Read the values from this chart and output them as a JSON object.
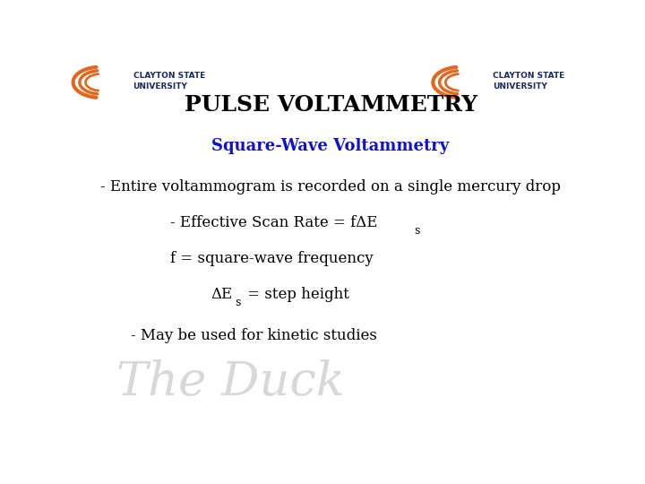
{
  "title": "PULSE VOLTAMMETRY",
  "subtitle": "Square-Wave Voltammetry",
  "line1": "- Entire voltammogram is recorded on a single mercury drop",
  "line2": "- Effective Scan Rate = fΔE",
  "line2_sub": "s",
  "line3": "f = square-wave frequency",
  "line4": "ΔE",
  "line4_sub": "s",
  "line4_suffix": " = step height",
  "line5": "- May be used for kinetic studies",
  "bg_color": "#ffffff",
  "title_color": "#000000",
  "subtitle_color": "#1111cc",
  "body_color": "#000000",
  "title_fontsize": 18,
  "subtitle_fontsize": 13,
  "body_fontsize": 12,
  "watermark_color": "#c8c8c8",
  "logo_orange": "#e06820",
  "logo_blue": "#1a2a5a"
}
